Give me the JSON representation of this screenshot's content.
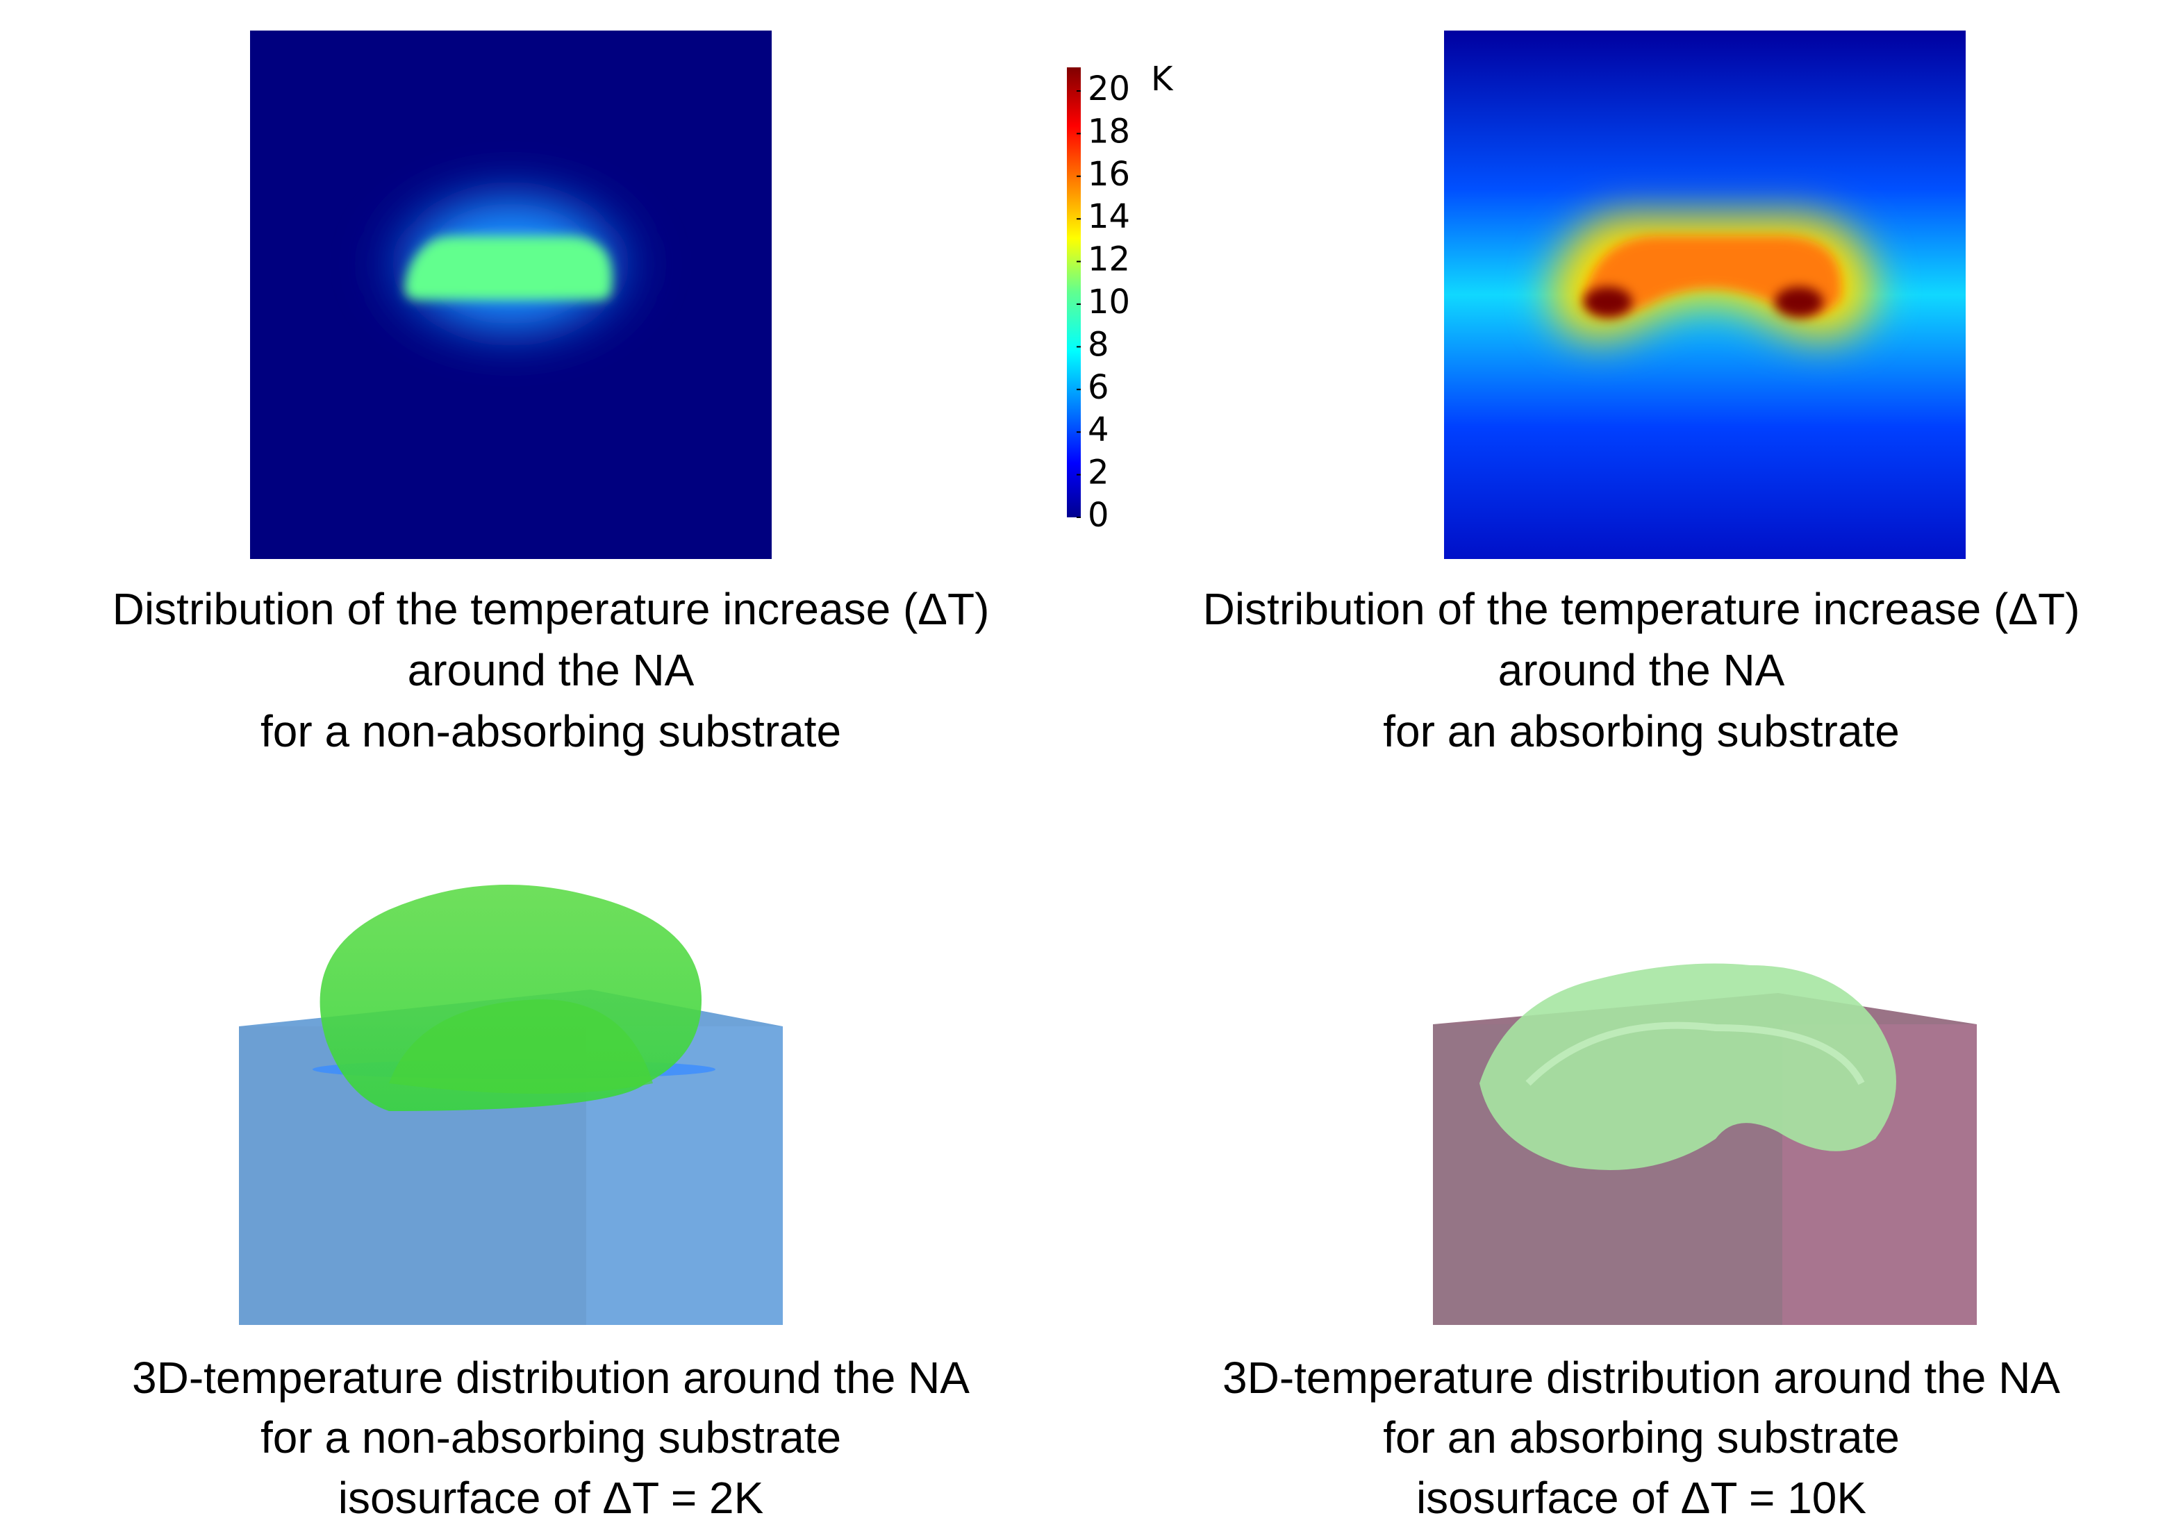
{
  "panels": [
    {
      "caption": [
        "Distribution of the temperature increase (ΔT)",
        "around the NA",
        "for a non-absorbing substrate"
      ]
    },
    {
      "caption": [
        "Distribution of the temperature increase (ΔT)",
        "around the NA",
        "for an absorbing substrate"
      ]
    },
    {
      "caption": [
        "3D-temperature distribution around the NA",
        "for a non-absorbing substrate",
        "isosurface of  ΔT = 2K"
      ]
    },
    {
      "caption": [
        "3D-temperature distribution around the NA",
        "for an absorbing substrate",
        "isosurface of  ΔT = 10K"
      ]
    }
  ],
  "colorbar": {
    "unit": "K",
    "ticks": [
      0,
      2,
      4,
      6,
      8,
      10,
      12,
      14,
      16,
      18,
      20
    ]
  }
}
